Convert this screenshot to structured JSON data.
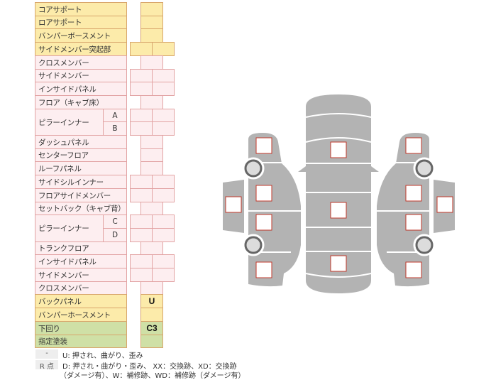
{
  "rows": [
    {
      "label": "コアサポート",
      "color": "y",
      "cells": "single"
    },
    {
      "label": "ロアサポート",
      "color": "y",
      "cells": "single"
    },
    {
      "label": "バンパーボースメント",
      "color": "y",
      "cells": "single"
    },
    {
      "label": "サイドメンバー突起部",
      "color": "y",
      "cells": "double"
    },
    {
      "label": "クロスメンバー",
      "color": "p",
      "cells": "single"
    },
    {
      "label": "サイドメンバー",
      "color": "p",
      "cells": "double"
    },
    {
      "label": "インサイドパネル",
      "color": "p",
      "cells": "double"
    },
    {
      "label": "フロア（キャブ床）",
      "color": "p",
      "cells": "single"
    },
    {
      "label": "ピラーインナー",
      "sub": "A",
      "color": "p",
      "cells": "double",
      "group_start": true
    },
    {
      "sub": "B",
      "color": "p",
      "cells": "double"
    },
    {
      "label": "ダッシュパネル",
      "color": "p",
      "cells": "single"
    },
    {
      "label": "センターフロア",
      "color": "p",
      "cells": "single"
    },
    {
      "label": "ルーフパネル",
      "color": "p",
      "cells": "single"
    },
    {
      "label": "サイドシルインナー",
      "color": "p",
      "cells": "double"
    },
    {
      "label": "フロアサイドメンバー",
      "color": "p",
      "cells": "double"
    },
    {
      "label": "セットバック（キャブ背）",
      "color": "p",
      "cells": "single"
    },
    {
      "label": "ピラーインナー",
      "sub": "C",
      "color": "p",
      "cells": "double",
      "group_start": true
    },
    {
      "sub": "D",
      "color": "p",
      "cells": "double"
    },
    {
      "label": "トランクフロア",
      "color": "p",
      "cells": "single"
    },
    {
      "label": "インサイドパネル",
      "color": "p",
      "cells": "double"
    },
    {
      "label": "サイドメンバー",
      "color": "p",
      "cells": "double"
    },
    {
      "label": "クロスメンバー",
      "color": "p",
      "cells": "single"
    },
    {
      "label": "バックパネル",
      "color": "y",
      "cells": "single",
      "value": "U"
    },
    {
      "label": "バンパーホースメント",
      "color": "y",
      "cells": "single"
    },
    {
      "label": "下回り",
      "color": "g",
      "cells": "single",
      "value": "C3"
    },
    {
      "label": "指定塗装",
      "color": "g",
      "cells": "single"
    }
  ],
  "legend": {
    "key1": "-",
    "line1": "U: 押され、曲がり、歪み",
    "key2": "R 点",
    "line2": "D: 押され・曲がり・歪み、 XX：交換跡、XD：交換跡",
    "line3": "（ダメージ有）、W：補修跡、WD：補修跡（ダメージ有）"
  },
  "colors": {
    "yellow": "#fcebaa",
    "pink": "#fdeef0",
    "green": "#cfe0a6",
    "panel": "#b3b3b3",
    "mark_border": "#c0392b"
  }
}
